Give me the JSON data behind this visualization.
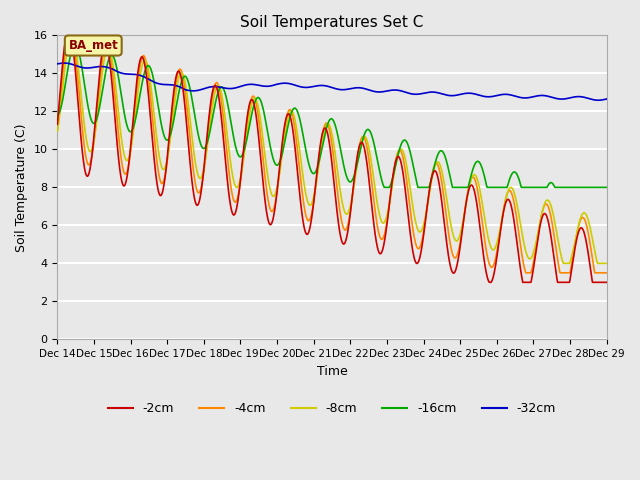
{
  "title": "Soil Temperatures Set C",
  "xlabel": "Time",
  "ylabel": "Soil Temperature (C)",
  "ylim": [
    0,
    16
  ],
  "xlim": [
    0,
    15
  ],
  "yticks": [
    0,
    2,
    4,
    6,
    8,
    10,
    12,
    14,
    16
  ],
  "xtick_labels": [
    "Dec 14",
    "Dec 15",
    "Dec 16",
    "Dec 17",
    "Dec 18",
    "Dec 19",
    "Dec 20",
    "Dec 21",
    "Dec 22",
    "Dec 23",
    "Dec 24",
    "Dec 25",
    "Dec 26",
    "Dec 27",
    "Dec 28",
    "Dec 29"
  ],
  "annotation": "BA_met",
  "bg_color": "#e8e8e8",
  "series": {
    "-2cm": {
      "color": "#cc0000",
      "lw": 1.2
    },
    "-4cm": {
      "color": "#ff8800",
      "lw": 1.2
    },
    "-8cm": {
      "color": "#cccc00",
      "lw": 1.2
    },
    "-16cm": {
      "color": "#00aa00",
      "lw": 1.2
    },
    "-32cm": {
      "color": "#0000cc",
      "lw": 1.2
    }
  },
  "legend_labels": [
    "-2cm",
    "-4cm",
    "-8cm",
    "-16cm",
    "-32cm"
  ]
}
